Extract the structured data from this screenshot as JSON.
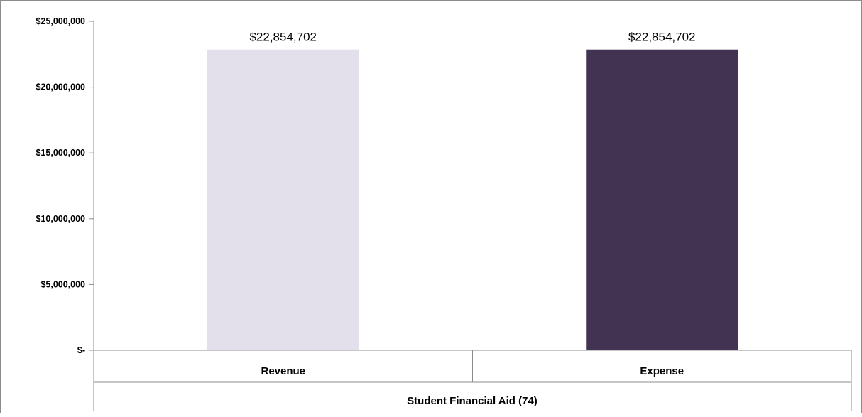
{
  "chart_data": {
    "type": "bar",
    "title": "",
    "xlabel": "",
    "ylabel": "",
    "group_label": "Student Financial Aid (74)",
    "categories": [
      "Revenue",
      "Expense"
    ],
    "values": [
      22854702,
      22854702
    ],
    "data_labels": [
      "$22,854,702",
      "$22,854,702"
    ],
    "colors": [
      "#e3dfeb",
      "#433352"
    ],
    "ylim": [
      0,
      25000000
    ],
    "yticks": [
      0,
      5000000,
      10000000,
      15000000,
      20000000,
      25000000
    ],
    "ytick_labels": [
      "$-",
      "$5,000,000",
      "$10,000,000",
      "$15,000,000",
      "$20,000,000",
      "$25,000,000"
    ],
    "grid": false,
    "legend": "none"
  }
}
